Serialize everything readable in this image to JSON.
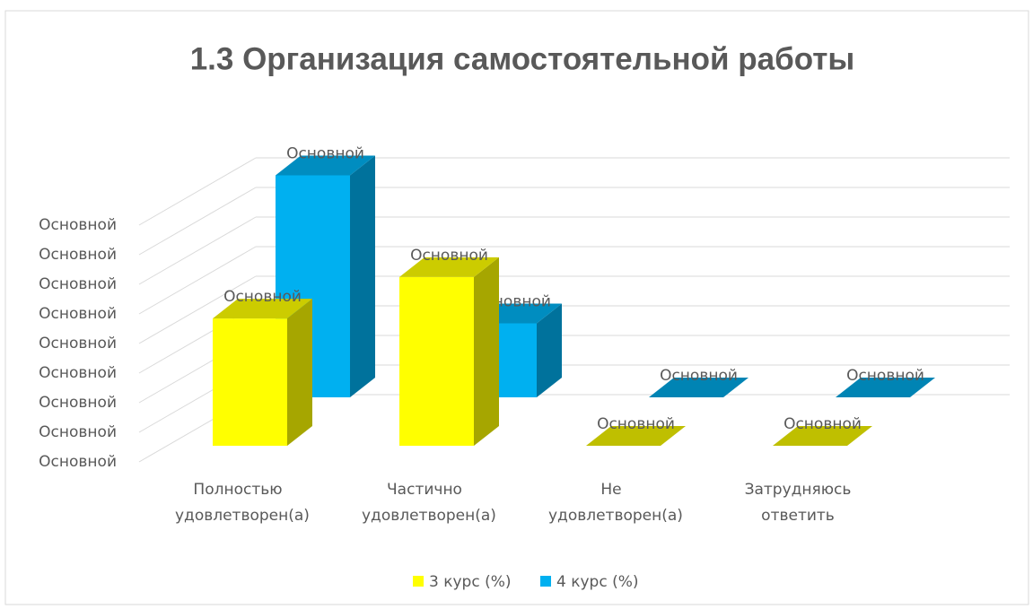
{
  "chart_data": {
    "type": "bar3d",
    "title": "1.3 Организация самостоятельной работы",
    "categories": [
      "Полностью удовлетворен(а)",
      "Частично удовлетворен(а)",
      "Не удовлетворен(а)",
      "Затрудняюсь ответить"
    ],
    "series": [
      {
        "name": "3 курс (%)",
        "color": "#ffff00",
        "values": [
          43,
          57,
          0,
          0
        ],
        "value_labels": [
          "Основной",
          "Основной",
          "Основной",
          "Основной"
        ]
      },
      {
        "name": "4 курс (%)",
        "color": "#00b0f0",
        "values": [
          75,
          25,
          0,
          0
        ],
        "value_labels": [
          "Основной",
          "Основной",
          "Основной",
          "Основной"
        ]
      }
    ],
    "ylim": [
      0,
      80
    ],
    "yticks": [
      {
        "value": 0,
        "label": "Основной"
      },
      {
        "value": 10,
        "label": "Основной"
      },
      {
        "value": 20,
        "label": "Основной"
      },
      {
        "value": 30,
        "label": "Основной"
      },
      {
        "value": 40,
        "label": "Основной"
      },
      {
        "value": 50,
        "label": "Основной"
      },
      {
        "value": 60,
        "label": "Основной"
      },
      {
        "value": 70,
        "label": "Основной"
      },
      {
        "value": 80,
        "label": "Основной"
      }
    ],
    "grid": true
  }
}
